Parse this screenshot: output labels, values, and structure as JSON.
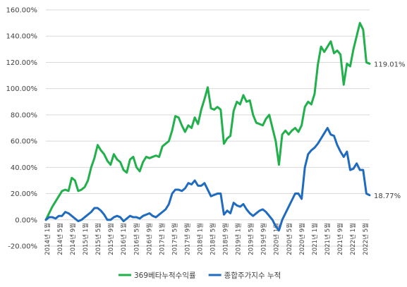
{
  "chart_data": {
    "type": "line",
    "title": "",
    "xlabel": "",
    "ylabel": "",
    "ylim": [
      -20,
      160
    ],
    "y_tick_step": 20,
    "y_tick_format": "percent_2dp",
    "grid": "horizontal",
    "legend_position": "bottom",
    "x_labels": [
      "2014년 1월",
      "2014년 5월",
      "2014년 9월",
      "2015년 1월",
      "2015년 5월",
      "2015년 9월",
      "2016년 1월",
      "2016년 5월",
      "2016년 9월",
      "2017년 1월",
      "2017년 5월",
      "2017년 9월",
      "2018년 1월",
      "2018년 5월",
      "2018년 9월",
      "2019년 1월",
      "2019년 5월",
      "2019년 9월",
      "2020년 1월",
      "2020년 5월",
      "2020년 9월",
      "2021년 1월",
      "2021년 5월",
      "2021년 9월",
      "2022년 1월",
      "2022년 5월"
    ],
    "series": [
      {
        "name": "369베타누적수익률",
        "color": "#21b04b",
        "end_label": "119.01%",
        "values": [
          0,
          5,
          10,
          14,
          18,
          22,
          23,
          22,
          32,
          30,
          22,
          23,
          25,
          30,
          40,
          47,
          57,
          53,
          50,
          45,
          42,
          50,
          46,
          44,
          38,
          36,
          46,
          48,
          40,
          37,
          44,
          48,
          47,
          48,
          49,
          48,
          56,
          58,
          60,
          68,
          79,
          78,
          72,
          67,
          72,
          70,
          78,
          73,
          84,
          92,
          101,
          85,
          84,
          86,
          84,
          58,
          62,
          64,
          83,
          90,
          88,
          95,
          90,
          91,
          80,
          74,
          73,
          72,
          77,
          80,
          70,
          60,
          42,
          65,
          68,
          65,
          68,
          70,
          67,
          72,
          86,
          90,
          88,
          96,
          118,
          132,
          128,
          132,
          136,
          127,
          129,
          126,
          103,
          119,
          117,
          130,
          140,
          150,
          145,
          120,
          119
        ]
      },
      {
        "name": "종합주가지수 누적",
        "color": "#1f6bbf",
        "end_label": "18.77%",
        "values": [
          0,
          2,
          2,
          1,
          3,
          3,
          6,
          5,
          3,
          1,
          -1,
          0,
          2,
          4,
          6,
          9,
          9,
          7,
          4,
          0,
          0,
          2,
          3,
          2,
          -1,
          1,
          3,
          2,
          2,
          1,
          3,
          4,
          5,
          3,
          2,
          4,
          6,
          8,
          12,
          20,
          23,
          23,
          22,
          24,
          28,
          27,
          30,
          26,
          26,
          28,
          23,
          18,
          19,
          20,
          20,
          4,
          7,
          5,
          13,
          11,
          10,
          12,
          8,
          5,
          3,
          5,
          7,
          8,
          6,
          3,
          0,
          -5,
          -8,
          0,
          5,
          10,
          15,
          20,
          20,
          16,
          40,
          50,
          53,
          55,
          58,
          62,
          66,
          70,
          65,
          64,
          57,
          52,
          48,
          52,
          38,
          39,
          43,
          38,
          38,
          20,
          18.77
        ]
      }
    ]
  }
}
